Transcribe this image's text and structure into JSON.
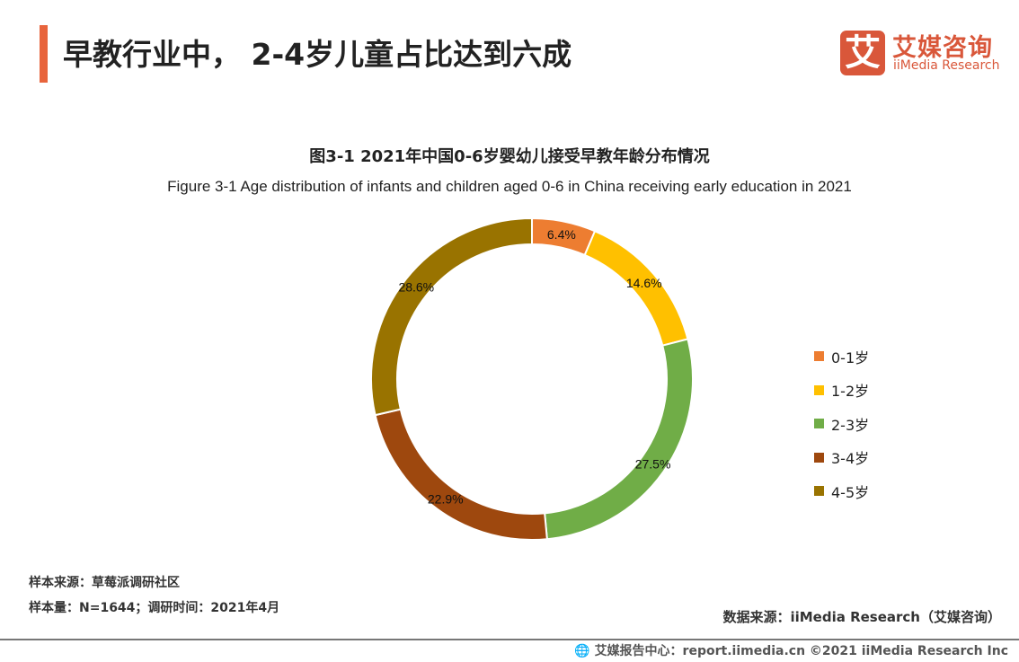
{
  "header": {
    "title": "早教行业中， 2-4岁儿童占比达到六成",
    "logo_mark": "艾",
    "logo_cn": "艾媒咨询",
    "logo_en": "iiMedia Research"
  },
  "chart_data": {
    "type": "pie",
    "donut": true,
    "title": "图3-1 2021年中国0-6岁婴幼儿接受早教年龄分布情况",
    "subtitle": "Figure 3-1 Age distribution of infants and children aged 0-6 in China receiving early education in 2021",
    "categories": [
      "0-1岁",
      "1-2岁",
      "2-3岁",
      "3-4岁",
      "4-5岁"
    ],
    "values": [
      6.4,
      14.6,
      27.5,
      22.9,
      28.6
    ],
    "labels": [
      "6.4%",
      "14.6%",
      "27.5%",
      "22.9%",
      "28.6%"
    ],
    "colors": [
      "#ED7D31",
      "#FFC000",
      "#70AD47",
      "#9E480E",
      "#997300"
    ],
    "legend": "right"
  },
  "notes": {
    "sample_source": "样本来源：草莓派调研社区",
    "sample_size": "样本量：N=1644；调研时间：2021年4月",
    "data_source": "数据来源：iiMedia Research（艾媒咨询）"
  },
  "footer": {
    "text": "艾媒报告中心：report.iimedia.cn   ©2021  iiMedia Research  Inc"
  }
}
